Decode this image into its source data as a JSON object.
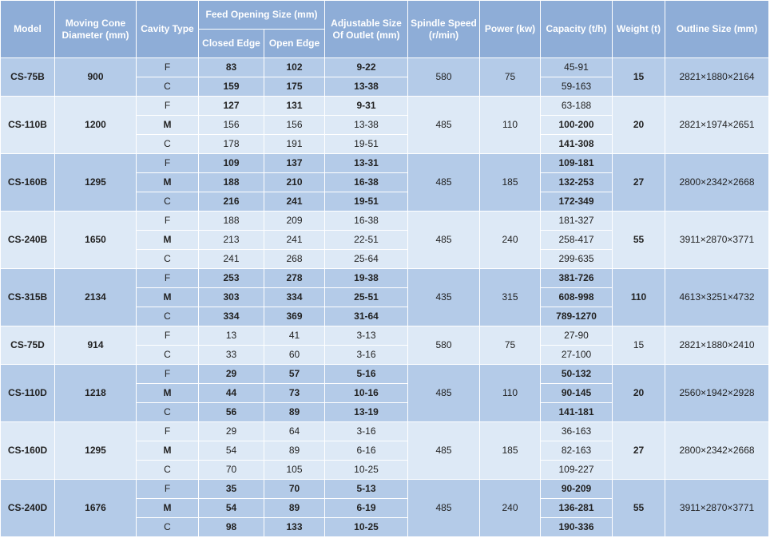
{
  "headers": {
    "model": "Model",
    "moving_cone_diameter": "Moving Cone Diameter (mm)",
    "cavity_type": "Cavity Type",
    "feed_opening_size": "Feed Opening Size (mm)",
    "closed_edge": "Closed Edge",
    "open_edge": "Open Edge",
    "adjustable_size": "Adjustable Size Of Outlet (mm)",
    "spindle_speed": "Spindle Speed (r/min)",
    "power": "Power (kw)",
    "capacity": "Capacity (t/h)",
    "weight": "Weight (t)",
    "outline_size": "Outline Size (mm)"
  },
  "groups": [
    {
      "model": "CS-75B",
      "diameter": "900",
      "speed": "580",
      "power": "75",
      "weight": "15",
      "outline": "2821×1880×2164",
      "rows": [
        {
          "cavity": "F",
          "closed": "83",
          "open": "102",
          "adjustable": "9-22",
          "capacity": "45-91"
        },
        {
          "cavity": "C",
          "closed": "159",
          "open": "175",
          "adjustable": "13-38",
          "capacity": "59-163"
        }
      ]
    },
    {
      "model": "CS-110B",
      "diameter": "1200",
      "speed": "485",
      "power": "110",
      "weight": "20",
      "outline": "2821×1974×2651",
      "rows": [
        {
          "cavity": "F",
          "closed": "127",
          "open": "131",
          "adjustable": "9-31",
          "capacity": "63-188"
        },
        {
          "cavity": "M",
          "closed": "156",
          "open": "156",
          "adjustable": "13-38",
          "capacity": "100-200"
        },
        {
          "cavity": "C",
          "closed": "178",
          "open": "191",
          "adjustable": "19-51",
          "capacity": "141-308"
        }
      ]
    },
    {
      "model": "CS-160B",
      "diameter": "1295",
      "speed": "485",
      "power": "185",
      "weight": "27",
      "outline": "2800×2342×2668",
      "rows": [
        {
          "cavity": "F",
          "closed": "109",
          "open": "137",
          "adjustable": "13-31",
          "capacity": "109-181"
        },
        {
          "cavity": "M",
          "closed": "188",
          "open": "210",
          "adjustable": "16-38",
          "capacity": "132-253"
        },
        {
          "cavity": "C",
          "closed": "216",
          "open": "241",
          "adjustable": "19-51",
          "capacity": "172-349"
        }
      ]
    },
    {
      "model": "CS-240B",
      "diameter": "1650",
      "speed": "485",
      "power": "240",
      "weight": "55",
      "outline": "3911×2870×3771",
      "rows": [
        {
          "cavity": "F",
          "closed": "188",
          "open": "209",
          "adjustable": "16-38",
          "capacity": "181-327"
        },
        {
          "cavity": "M",
          "closed": "213",
          "open": "241",
          "adjustable": "22-51",
          "capacity": "258-417"
        },
        {
          "cavity": "C",
          "closed": "241",
          "open": "268",
          "adjustable": "25-64",
          "capacity": "299-635"
        }
      ]
    },
    {
      "model": "CS-315B",
      "diameter": "2134",
      "speed": "435",
      "power": "315",
      "weight": "110",
      "outline": "4613×3251×4732",
      "rows": [
        {
          "cavity": "F",
          "closed": "253",
          "open": "278",
          "adjustable": "19-38",
          "capacity": "381-726"
        },
        {
          "cavity": "M",
          "closed": "303",
          "open": "334",
          "adjustable": "25-51",
          "capacity": "608-998"
        },
        {
          "cavity": "C",
          "closed": "334",
          "open": "369",
          "adjustable": "31-64",
          "capacity": "789-1270"
        }
      ]
    },
    {
      "model": "CS-75D",
      "diameter": "914",
      "speed": "580",
      "power": "75",
      "weight": "15",
      "outline": "2821×1880×2410",
      "rows": [
        {
          "cavity": "F",
          "closed": "13",
          "open": "41",
          "adjustable": "3-13",
          "capacity": "27-90"
        },
        {
          "cavity": "C",
          "closed": "33",
          "open": "60",
          "adjustable": "3-16",
          "capacity": "27-100"
        }
      ]
    },
    {
      "model": "CS-110D",
      "diameter": "1218",
      "speed": "485",
      "power": "110",
      "weight": "20",
      "outline": "2560×1942×2928",
      "rows": [
        {
          "cavity": "F",
          "closed": "29",
          "open": "57",
          "adjustable": "5-16",
          "capacity": "50-132"
        },
        {
          "cavity": "M",
          "closed": "44",
          "open": "73",
          "adjustable": "10-16",
          "capacity": "90-145"
        },
        {
          "cavity": "C",
          "closed": "56",
          "open": "89",
          "adjustable": "13-19",
          "capacity": "141-181"
        }
      ]
    },
    {
      "model": "CS-160D",
      "diameter": "1295",
      "speed": "485",
      "power": "185",
      "weight": "27",
      "outline": "2800×2342×2668",
      "rows": [
        {
          "cavity": "F",
          "closed": "29",
          "open": "64",
          "adjustable": "3-16",
          "capacity": "36-163"
        },
        {
          "cavity": "M",
          "closed": "54",
          "open": "89",
          "adjustable": "6-16",
          "capacity": "82-163"
        },
        {
          "cavity": "C",
          "closed": "70",
          "open": "105",
          "adjustable": "10-25",
          "capacity": "109-227"
        }
      ]
    },
    {
      "model": "CS-240D",
      "diameter": "1676",
      "speed": "485",
      "power": "240",
      "weight": "55",
      "outline": "3911×2870×3771",
      "rows": [
        {
          "cavity": "F",
          "closed": "35",
          "open": "70",
          "adjustable": "5-13",
          "capacity": "90-209"
        },
        {
          "cavity": "M",
          "closed": "54",
          "open": "89",
          "adjustable": "6-19",
          "capacity": "136-281"
        },
        {
          "cavity": "C",
          "closed": "98",
          "open": "133",
          "adjustable": "10-25",
          "capacity": "190-336"
        }
      ]
    }
  ],
  "colors": {
    "header_bg": "#8eadd7",
    "group_dark_bg": "#b4cbe8",
    "group_light_bg": "#dde9f6",
    "text": "#222222"
  }
}
